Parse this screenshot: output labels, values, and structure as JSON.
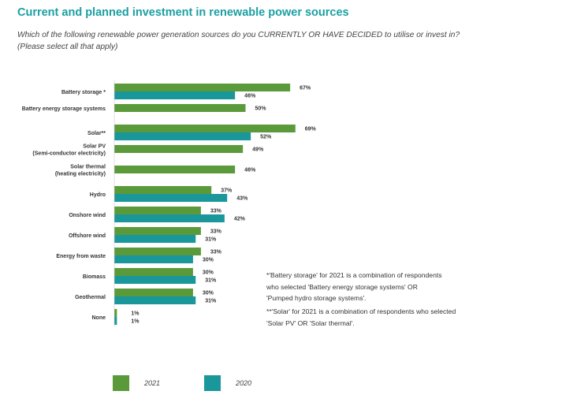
{
  "header": {
    "title": "Current and planned investment in renewable power sources",
    "question_line1": "Which of the following renewable power generation sources do you CURRENTLY OR HAVE DECIDED to utilise or invest in?",
    "question_line2": "(Please select all that apply)"
  },
  "colors": {
    "s2021": "#5b9a3a",
    "s2020": "#19979b"
  },
  "notes": {
    "battery": [
      "*'Battery storage' for 2021 is a combination of respondents",
      "who selected 'Battery energy storage systems' OR",
      "'Pumped hydro storage systems'."
    ],
    "solar": [
      "**'Solar' for 2021 is a combination of respondents who selected",
      "'Solar PV' OR 'Solar thermal'."
    ]
  },
  "chart_data": {
    "type": "bar",
    "orientation": "horizontal",
    "categories": [
      [
        "Battery storage *"
      ],
      [
        "Battery energy storage systems"
      ],
      [
        "Solar**"
      ],
      [
        "Solar PV",
        "(Semi-conductor electricity)"
      ],
      [
        "Solar thermal",
        "(heating electricity)"
      ],
      [
        "Hydro"
      ],
      [
        "Onshore wind"
      ],
      [
        "Offshore wind"
      ],
      [
        "Energy from waste"
      ],
      [
        "Biomass"
      ],
      [
        "Geothermal"
      ],
      [
        "None"
      ]
    ],
    "series": [
      {
        "name": "2021",
        "values": [
          67,
          50,
          69,
          49,
          46,
          37,
          33,
          33,
          33,
          30,
          30,
          1
        ]
      },
      {
        "name": "2020",
        "values": [
          46,
          null,
          52,
          null,
          null,
          43,
          42,
          31,
          30,
          31,
          31,
          1
        ]
      }
    ],
    "value_suffix": "%",
    "legend_position": "bottom"
  }
}
